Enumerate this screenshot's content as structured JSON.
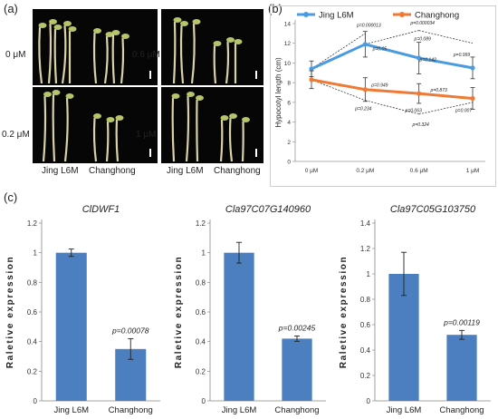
{
  "panels": {
    "a": "(a)",
    "b": "(b)",
    "c": "(c)"
  },
  "panel_a": {
    "concentrations": [
      "0 μM",
      "0.6 μM",
      "0.2 μM",
      "1 μM"
    ],
    "cultivars": [
      "Jing L6M",
      "Changhong",
      "Jing L6M",
      "Changhong"
    ]
  },
  "colors": {
    "jing": "#4a9be0",
    "chang": "#ef7a35",
    "bar": "#4c7fbf"
  },
  "chart_data": [
    {
      "type": "line",
      "ylabel": "Hypocotyl length (cm)",
      "x": [
        "0 μM",
        "0.2 μM",
        "0.6 μM",
        "1 μM"
      ],
      "ylim": [
        0,
        14
      ],
      "yticks": [
        "0",
        "2",
        "4",
        "6",
        "8",
        "10",
        "12",
        "14"
      ],
      "legend": "top",
      "series": [
        {
          "name": "Jing L6M",
          "values": [
            9.4,
            11.9,
            10.5,
            9.5
          ],
          "err": [
            0.8,
            1.3,
            1.6,
            1.1
          ]
        },
        {
          "name": "Changhong",
          "values": [
            8.3,
            7.3,
            6.9,
            6.4
          ],
          "err": [
            0.9,
            1.2,
            1.0,
            1.1
          ]
        }
      ],
      "annotations": [
        "p=0.000013",
        "p=0.000034",
        "p=0.089",
        "p=0.05",
        "p=0.142",
        "p=0.999",
        "p=0.949",
        "p=0.873",
        "p=0.234",
        "p=0.063",
        "p=0.007",
        "p=0.324"
      ]
    },
    {
      "type": "bar",
      "title": "ClDWF1",
      "ylabel": "Raletive expression",
      "categories": [
        "Jing L6M",
        "Changhong"
      ],
      "values": [
        1.0,
        0.35
      ],
      "err": [
        0.025,
        0.07
      ],
      "ylim": [
        0,
        1.2
      ],
      "yticks": [
        "0",
        "0.2",
        "0.4",
        "0.6",
        "0.8",
        "1",
        "1.2"
      ],
      "annotation": "p=0.00078"
    },
    {
      "type": "bar",
      "title": "Cla97C07G140960",
      "ylabel": "Raletive expression",
      "categories": [
        "Jing L6M",
        "Changhong"
      ],
      "values": [
        1.0,
        0.42
      ],
      "err": [
        0.07,
        0.018
      ],
      "ylim": [
        0,
        1.2
      ],
      "yticks": [
        "0",
        "0.2",
        "0.4",
        "0.6",
        "0.8",
        "1",
        "1.2"
      ],
      "annotation": "p=0.00245"
    },
    {
      "type": "bar",
      "title": "Cla97C05G103750",
      "ylabel": "Raletive expression",
      "categories": [
        "Jing L6M",
        "Changhong"
      ],
      "values": [
        1.0,
        0.52
      ],
      "err": [
        0.17,
        0.035
      ],
      "ylim": [
        0,
        1.4
      ],
      "yticks": [
        "0",
        "0.2",
        "0.4",
        "0.6",
        "0.8",
        "1",
        "1.2",
        "1.4"
      ],
      "annotation": "p=0.00119"
    }
  ]
}
